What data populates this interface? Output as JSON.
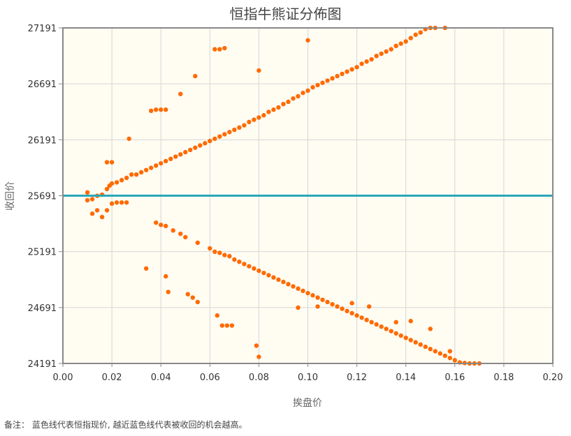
{
  "footnote": "备注：  蓝色线代表恒指现价, 越近蓝色线代表被收回的机会越高。",
  "colors": {
    "plot_bg": "#fffcf2",
    "grid": "#d6d6d6",
    "frame": "#888888",
    "point": "#ff6a00",
    "ref_line": "#2aa6b8"
  },
  "chart_data": {
    "type": "scatter",
    "title": "恒指牛熊证分佈图",
    "xlabel": "挨盘价",
    "ylabel": "收回价",
    "xlim": [
      0,
      0.2
    ],
    "ylim": [
      24191,
      27191
    ],
    "xticks": [
      "0.00",
      "0.02",
      "0.04",
      "0.06",
      "0.08",
      "0.10",
      "0.12",
      "0.14",
      "0.16",
      "0.18",
      "0.20"
    ],
    "yticks": [
      "24191",
      "24691",
      "25191",
      "25691",
      "26191",
      "26691",
      "27191"
    ],
    "grid": true,
    "reference_line": {
      "y": 25691
    },
    "bull_series": [
      [
        0.01,
        25720
      ],
      [
        0.01,
        25650
      ],
      [
        0.012,
        25660
      ],
      [
        0.014,
        25690
      ],
      [
        0.016,
        25700
      ],
      [
        0.018,
        25750
      ],
      [
        0.019,
        25780
      ],
      [
        0.02,
        25800
      ],
      [
        0.022,
        25810
      ],
      [
        0.024,
        25830
      ],
      [
        0.026,
        25850
      ],
      [
        0.028,
        25880
      ],
      [
        0.03,
        25880
      ],
      [
        0.032,
        25900
      ],
      [
        0.034,
        25920
      ],
      [
        0.036,
        25940
      ],
      [
        0.038,
        25960
      ],
      [
        0.04,
        25980
      ],
      [
        0.042,
        26000
      ],
      [
        0.044,
        26020
      ],
      [
        0.046,
        26040
      ],
      [
        0.048,
        26060
      ],
      [
        0.05,
        26080
      ],
      [
        0.052,
        26100
      ],
      [
        0.054,
        26120
      ],
      [
        0.056,
        26140
      ],
      [
        0.058,
        26160
      ],
      [
        0.06,
        26180
      ],
      [
        0.062,
        26200
      ],
      [
        0.064,
        26220
      ],
      [
        0.066,
        26240
      ],
      [
        0.068,
        26260
      ],
      [
        0.07,
        26280
      ],
      [
        0.072,
        26300
      ],
      [
        0.074,
        26320
      ],
      [
        0.076,
        26350
      ],
      [
        0.078,
        26370
      ],
      [
        0.08,
        26390
      ],
      [
        0.082,
        26410
      ],
      [
        0.084,
        26440
      ],
      [
        0.086,
        26460
      ],
      [
        0.088,
        26480
      ],
      [
        0.09,
        26510
      ],
      [
        0.092,
        26530
      ],
      [
        0.094,
        26560
      ],
      [
        0.096,
        26580
      ],
      [
        0.098,
        26610
      ],
      [
        0.1,
        26630
      ],
      [
        0.102,
        26660
      ],
      [
        0.104,
        26680
      ],
      [
        0.106,
        26700
      ],
      [
        0.108,
        26720
      ],
      [
        0.11,
        26740
      ],
      [
        0.112,
        26760
      ],
      [
        0.114,
        26780
      ],
      [
        0.116,
        26800
      ],
      [
        0.118,
        26820
      ],
      [
        0.12,
        26840
      ],
      [
        0.122,
        26870
      ],
      [
        0.124,
        26890
      ],
      [
        0.126,
        26910
      ],
      [
        0.128,
        26940
      ],
      [
        0.13,
        26960
      ],
      [
        0.132,
        26980
      ],
      [
        0.134,
        27000
      ],
      [
        0.136,
        27030
      ],
      [
        0.138,
        27050
      ],
      [
        0.14,
        27070
      ],
      [
        0.142,
        27100
      ],
      [
        0.144,
        27130
      ],
      [
        0.146,
        27150
      ],
      [
        0.148,
        27180
      ],
      [
        0.15,
        27191
      ],
      [
        0.152,
        27191
      ],
      [
        0.156,
        27191
      ],
      [
        0.036,
        26450
      ],
      [
        0.038,
        26460
      ],
      [
        0.04,
        26460
      ],
      [
        0.042,
        26460
      ],
      [
        0.048,
        26600
      ],
      [
        0.054,
        26760
      ],
      [
        0.062,
        27000
      ],
      [
        0.064,
        27000
      ],
      [
        0.066,
        27010
      ],
      [
        0.08,
        26810
      ],
      [
        0.1,
        27080
      ],
      [
        0.027,
        26200
      ],
      [
        0.018,
        25990
      ],
      [
        0.02,
        25990
      ]
    ],
    "bear_series": [
      [
        0.012,
        25530
      ],
      [
        0.014,
        25560
      ],
      [
        0.016,
        25500
      ],
      [
        0.018,
        25560
      ],
      [
        0.02,
        25620
      ],
      [
        0.022,
        25630
      ],
      [
        0.024,
        25630
      ],
      [
        0.026,
        25630
      ],
      [
        0.038,
        25450
      ],
      [
        0.04,
        25430
      ],
      [
        0.042,
        25420
      ],
      [
        0.045,
        25380
      ],
      [
        0.048,
        25350
      ],
      [
        0.05,
        25320
      ],
      [
        0.055,
        25270
      ],
      [
        0.06,
        25220
      ],
      [
        0.062,
        25190
      ],
      [
        0.064,
        25180
      ],
      [
        0.066,
        25160
      ],
      [
        0.068,
        25150
      ],
      [
        0.07,
        25120
      ],
      [
        0.072,
        25100
      ],
      [
        0.074,
        25080
      ],
      [
        0.076,
        25060
      ],
      [
        0.078,
        25040
      ],
      [
        0.08,
        25020
      ],
      [
        0.082,
        25000
      ],
      [
        0.084,
        24980
      ],
      [
        0.086,
        24960
      ],
      [
        0.088,
        24940
      ],
      [
        0.09,
        24920
      ],
      [
        0.092,
        24900
      ],
      [
        0.094,
        24880
      ],
      [
        0.096,
        24860
      ],
      [
        0.098,
        24840
      ],
      [
        0.1,
        24820
      ],
      [
        0.102,
        24800
      ],
      [
        0.104,
        24780
      ],
      [
        0.106,
        24760
      ],
      [
        0.108,
        24740
      ],
      [
        0.11,
        24720
      ],
      [
        0.112,
        24700
      ],
      [
        0.114,
        24680
      ],
      [
        0.116,
        24660
      ],
      [
        0.118,
        24640
      ],
      [
        0.12,
        24620
      ],
      [
        0.122,
        24600
      ],
      [
        0.124,
        24580
      ],
      [
        0.126,
        24560
      ],
      [
        0.128,
        24540
      ],
      [
        0.13,
        24520
      ],
      [
        0.132,
        24500
      ],
      [
        0.134,
        24480
      ],
      [
        0.136,
        24460
      ],
      [
        0.138,
        24440
      ],
      [
        0.14,
        24420
      ],
      [
        0.142,
        24400
      ],
      [
        0.144,
        24380
      ],
      [
        0.146,
        24360
      ],
      [
        0.148,
        24340
      ],
      [
        0.15,
        24320
      ],
      [
        0.152,
        24300
      ],
      [
        0.154,
        24280
      ],
      [
        0.156,
        24260
      ],
      [
        0.158,
        24240
      ],
      [
        0.16,
        24220
      ],
      [
        0.162,
        24200
      ],
      [
        0.164,
        24195
      ],
      [
        0.166,
        24191
      ],
      [
        0.168,
        24191
      ],
      [
        0.17,
        24191
      ],
      [
        0.034,
        25040
      ],
      [
        0.042,
        24970
      ],
      [
        0.043,
        24830
      ],
      [
        0.051,
        24810
      ],
      [
        0.053,
        24780
      ],
      [
        0.055,
        24740
      ],
      [
        0.063,
        24620
      ],
      [
        0.065,
        24530
      ],
      [
        0.067,
        24530
      ],
      [
        0.069,
        24530
      ],
      [
        0.079,
        24350
      ],
      [
        0.08,
        24250
      ],
      [
        0.096,
        24690
      ],
      [
        0.104,
        24700
      ],
      [
        0.118,
        24730
      ],
      [
        0.125,
        24700
      ],
      [
        0.136,
        24560
      ],
      [
        0.142,
        24570
      ],
      [
        0.15,
        24500
      ],
      [
        0.158,
        24300
      ]
    ]
  }
}
